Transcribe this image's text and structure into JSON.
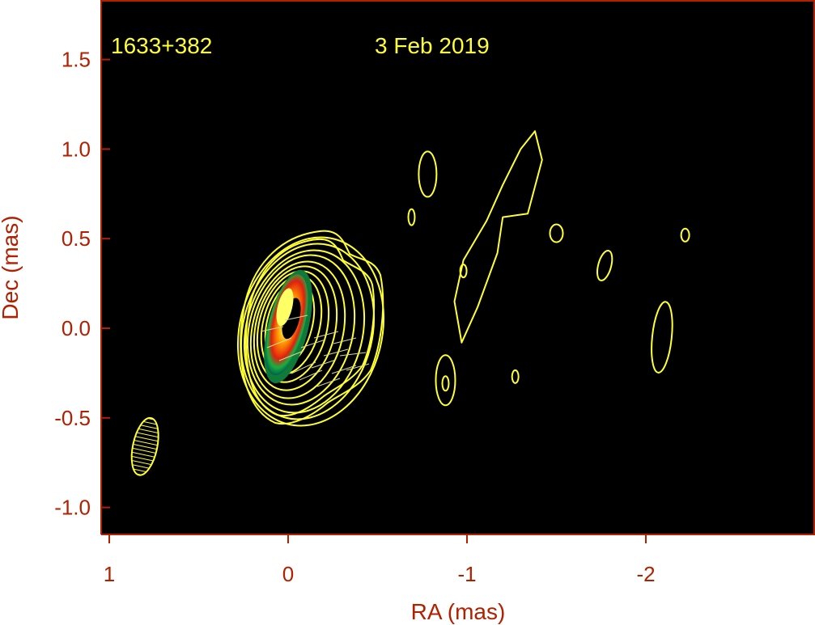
{
  "chart_data": {
    "type": "contour",
    "source_label": "1633+382",
    "date_label": "3 Feb 2019",
    "xlabel": "RA (mas)",
    "ylabel": "Dec (mas)",
    "xlim": [
      1.1,
      -2.95
    ],
    "ylim": [
      -1.15,
      1.85
    ],
    "x_ticks": [
      1,
      0,
      -1,
      -2
    ],
    "x_tick_labels": [
      "1",
      "0",
      "-1",
      "-2"
    ],
    "y_ticks": [
      1.5,
      1.0,
      0.5,
      0.0,
      -0.5,
      -1.0
    ],
    "y_tick_labels": [
      "1.5",
      "1.0",
      "0.5",
      "0.0",
      "-0.5",
      "-1.0"
    ],
    "grid": false,
    "colors": {
      "background": "#000000",
      "frame": "#b22000",
      "contours": "#ffff33",
      "labels": "#b22000"
    },
    "core": {
      "ra": 0.0,
      "dec": 0.1
    },
    "beam": {
      "ra": 0.8,
      "dec": -0.66,
      "major_mas": 0.33,
      "minor_mas": 0.14
    },
    "islands": [
      {
        "ra": -0.78,
        "dec": 0.86
      },
      {
        "ra": -0.69,
        "dec": 0.62
      },
      {
        "ra": -1.5,
        "dec": 0.53
      },
      {
        "ra": -2.22,
        "dec": 0.52
      },
      {
        "ra": -1.77,
        "dec": 0.35
      },
      {
        "ra": -0.98,
        "dec": 0.32
      },
      {
        "ra": -0.88,
        "dec": -0.29
      },
      {
        "ra": -1.27,
        "dec": -0.27
      },
      {
        "ra": -2.09,
        "dec": -0.05
      }
    ],
    "jet_filament": [
      [
        -0.97,
        -0.08
      ],
      [
        -0.93,
        0.15
      ],
      [
        -0.98,
        0.38
      ],
      [
        -1.11,
        0.6
      ],
      [
        -1.2,
        0.8
      ],
      [
        -1.3,
        1.0
      ],
      [
        -1.38,
        1.1
      ],
      [
        -1.42,
        0.94
      ],
      [
        -1.34,
        0.64
      ],
      [
        -1.2,
        0.62
      ],
      [
        -1.17,
        0.42
      ],
      [
        -1.06,
        0.12
      ],
      [
        -0.97,
        -0.08
      ]
    ]
  }
}
